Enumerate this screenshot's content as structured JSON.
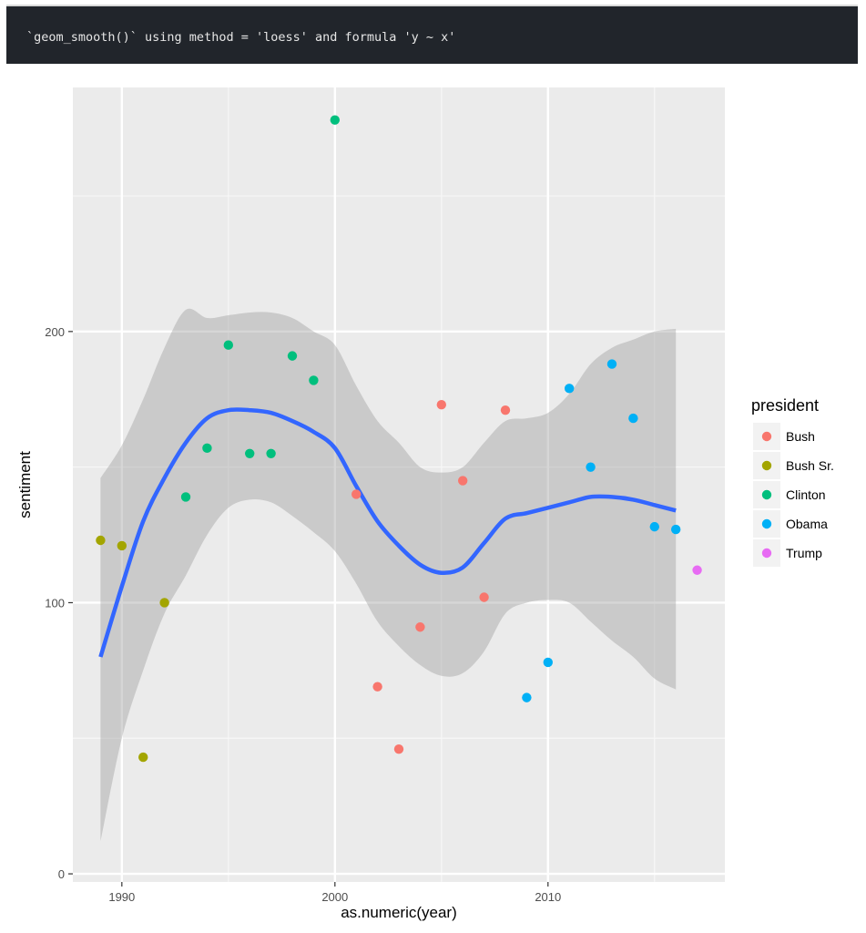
{
  "console": {
    "message": "`geom_smooth()` using method = 'loess' and formula 'y ~ x'"
  },
  "chart_data": {
    "type": "scatter",
    "xlabel": "as.numeric(year)",
    "ylabel": "sentiment",
    "xlim": [
      1987.7,
      2018.3
    ],
    "ylim": [
      -3,
      290
    ],
    "x_ticks": [
      1990,
      2000,
      2010
    ],
    "x_tick_labels": [
      "1990",
      "2000",
      "2010"
    ],
    "y_ticks": [
      0,
      100,
      200
    ],
    "y_tick_labels": [
      "0",
      "100",
      "200"
    ],
    "grid": true,
    "legend": {
      "title": "president",
      "placement": "right",
      "entries": [
        {
          "label": "Bush",
          "color": "#F8766D"
        },
        {
          "label": "Bush Sr.",
          "color": "#A3A500"
        },
        {
          "label": "Clinton",
          "color": "#00BF7D"
        },
        {
          "label": "Obama",
          "color": "#00B0F6"
        },
        {
          "label": "Trump",
          "color": "#E76BF3"
        }
      ]
    },
    "series": [
      {
        "name": "Bush Sr.",
        "color": "#A3A500",
        "points": [
          [
            1989,
            123
          ],
          [
            1990,
            121
          ],
          [
            1991,
            43
          ],
          [
            1992,
            100
          ]
        ]
      },
      {
        "name": "Clinton",
        "color": "#00BF7D",
        "points": [
          [
            1993,
            139
          ],
          [
            1994,
            157
          ],
          [
            1995,
            195
          ],
          [
            1996,
            155
          ],
          [
            1997,
            155
          ],
          [
            1998,
            191
          ],
          [
            1999,
            182
          ],
          [
            2000,
            278
          ]
        ]
      },
      {
        "name": "Bush",
        "color": "#F8766D",
        "points": [
          [
            2001,
            140
          ],
          [
            2002,
            69
          ],
          [
            2003,
            46
          ],
          [
            2004,
            91
          ],
          [
            2005,
            173
          ],
          [
            2006,
            145
          ],
          [
            2007,
            102
          ],
          [
            2008,
            171
          ]
        ]
      },
      {
        "name": "Obama",
        "color": "#00B0F6",
        "points": [
          [
            2009,
            65
          ],
          [
            2010,
            78
          ],
          [
            2011,
            179
          ],
          [
            2012,
            150
          ],
          [
            2013,
            188
          ],
          [
            2014,
            168
          ],
          [
            2015,
            128
          ],
          [
            2016,
            127
          ]
        ]
      },
      {
        "name": "Trump",
        "color": "#E76BF3",
        "points": [
          [
            2017,
            112
          ]
        ]
      }
    ],
    "smooth": {
      "method": "loess",
      "color": "#3366FF",
      "ribbon_color": "#999999",
      "fit": [
        [
          1989,
          80,
          12,
          146
        ],
        [
          1990,
          106,
          50,
          158
        ],
        [
          1991,
          130,
          75,
          175
        ],
        [
          1992,
          146,
          96,
          194
        ],
        [
          1993,
          159,
          110,
          208
        ],
        [
          1994,
          168,
          125,
          205
        ],
        [
          1995,
          171,
          135,
          206
        ],
        [
          1996,
          171,
          138,
          207
        ],
        [
          1997,
          170,
          137,
          207
        ],
        [
          1998,
          167,
          132,
          205
        ],
        [
          1999,
          163,
          126,
          200
        ],
        [
          2000,
          157,
          119,
          195
        ],
        [
          2001,
          143,
          107,
          180
        ],
        [
          2002,
          130,
          93,
          167
        ],
        [
          2003,
          121,
          84,
          159
        ],
        [
          2004,
          114,
          77,
          150
        ],
        [
          2005,
          111,
          73,
          148
        ],
        [
          2006,
          113,
          74,
          150
        ],
        [
          2007,
          122,
          82,
          159
        ],
        [
          2008,
          131,
          96,
          167
        ],
        [
          2009,
          133,
          100,
          168
        ],
        [
          2010,
          135,
          101,
          170
        ],
        [
          2011,
          137,
          100,
          177
        ],
        [
          2012,
          139,
          93,
          188
        ],
        [
          2013,
          139,
          86,
          194
        ],
        [
          2014,
          138,
          80,
          197
        ],
        [
          2015,
          136,
          72,
          200
        ],
        [
          2016,
          134,
          68,
          201
        ]
      ]
    }
  }
}
